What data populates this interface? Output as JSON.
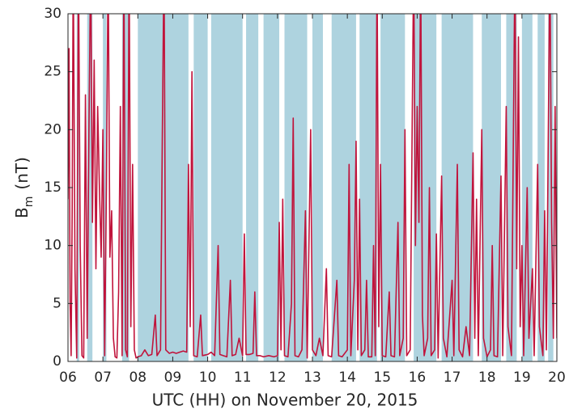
{
  "chart_data": {
    "type": "line",
    "x_label": "UTC (HH) on November 20, 2015",
    "y_label": "B",
    "y_label_sub": "m",
    "y_label_unit": "(nT)",
    "color": "#c0143c",
    "shade_color": "#aed3df",
    "xlim": [
      6,
      20
    ],
    "xticks": [
      {
        "value": 6,
        "label": "06"
      },
      {
        "value": 7,
        "label": "07"
      },
      {
        "value": 8,
        "label": "08"
      },
      {
        "value": 9,
        "label": "09"
      },
      10,
      11,
      12,
      13,
      14,
      15,
      16,
      17,
      18,
      19,
      20
    ],
    "ylim": [
      0,
      30
    ],
    "yticks": [
      0,
      5,
      10,
      15,
      20,
      25,
      30
    ],
    "shaded_intervals": [
      [
        6.25,
        6.32
      ],
      [
        6.55,
        6.7
      ],
      [
        7.0,
        7.1
      ],
      [
        7.55,
        7.75
      ],
      [
        8.0,
        9.45
      ],
      [
        9.6,
        10.0
      ],
      [
        10.1,
        11.0
      ],
      [
        11.1,
        11.45
      ],
      [
        11.6,
        12.05
      ],
      [
        12.2,
        12.85
      ],
      [
        13.0,
        13.3
      ],
      [
        13.55,
        14.25
      ],
      [
        14.35,
        14.85
      ],
      [
        14.95,
        15.65
      ],
      [
        15.9,
        16.55
      ],
      [
        16.7,
        17.6
      ],
      [
        17.85,
        18.4
      ],
      [
        18.55,
        18.85
      ],
      [
        19.0,
        19.3
      ],
      [
        19.45,
        19.65
      ],
      [
        19.75,
        19.9
      ]
    ],
    "x": [
      6.0,
      6.03,
      6.06,
      6.09,
      6.12,
      6.15,
      6.2,
      6.25,
      6.3,
      6.35,
      6.4,
      6.45,
      6.5,
      6.55,
      6.6,
      6.65,
      6.7,
      6.75,
      6.8,
      6.85,
      6.9,
      6.95,
      7.0,
      7.05,
      7.1,
      7.15,
      7.2,
      7.25,
      7.3,
      7.35,
      7.4,
      7.45,
      7.5,
      7.55,
      7.6,
      7.65,
      7.7,
      7.75,
      7.8,
      7.85,
      7.9,
      7.95,
      8.0,
      8.1,
      8.2,
      8.3,
      8.4,
      8.5,
      8.55,
      8.65,
      8.7,
      8.75,
      8.8,
      8.9,
      9.0,
      9.1,
      9.2,
      9.3,
      9.4,
      9.45,
      9.5,
      9.55,
      9.6,
      9.7,
      9.8,
      9.85,
      10.0,
      10.1,
      10.2,
      10.3,
      10.35,
      10.45,
      10.55,
      10.65,
      10.7,
      10.8,
      10.9,
      11.0,
      11.05,
      11.1,
      11.2,
      11.3,
      11.35,
      11.4,
      11.5,
      11.6,
      11.75,
      11.9,
      12.0,
      12.05,
      12.1,
      12.15,
      12.2,
      12.3,
      12.4,
      12.45,
      12.5,
      12.6,
      12.7,
      12.8,
      12.85,
      12.95,
      13.0,
      13.1,
      13.2,
      13.3,
      13.4,
      13.45,
      13.55,
      13.7,
      13.75,
      13.85,
      14.0,
      14.05,
      14.1,
      14.2,
      14.25,
      14.3,
      14.35,
      14.4,
      14.5,
      14.55,
      14.6,
      14.7,
      14.75,
      14.8,
      14.85,
      14.9,
      14.95,
      15.0,
      15.1,
      15.2,
      15.25,
      15.35,
      15.45,
      15.5,
      15.6,
      15.65,
      15.7,
      15.8,
      15.9,
      15.95,
      16.0,
      16.05,
      16.1,
      16.15,
      16.2,
      16.3,
      16.35,
      16.4,
      16.5,
      16.55,
      16.6,
      16.7,
      16.75,
      16.85,
      17.0,
      17.05,
      17.15,
      17.2,
      17.3,
      17.4,
      17.5,
      17.6,
      17.65,
      17.7,
      17.75,
      17.85,
      17.9,
      18.0,
      18.1,
      18.15,
      18.2,
      18.3,
      18.4,
      18.45,
      18.55,
      18.6,
      18.7,
      18.8,
      18.85,
      18.9,
      18.95,
      19.0,
      19.05,
      19.15,
      19.2,
      19.3,
      19.35,
      19.45,
      19.5,
      19.6,
      19.65,
      19.7,
      19.8,
      19.85,
      19.9,
      19.95,
      20.0
    ],
    "values": [
      14,
      27,
      5,
      0.5,
      13,
      35,
      8,
      0.3,
      35,
      10,
      0.5,
      0.3,
      23,
      2,
      20,
      35,
      12,
      26,
      8,
      22,
      15,
      9,
      20,
      0.5,
      15,
      35,
      9,
      13,
      2,
      0.4,
      0.3,
      6,
      22,
      0.5,
      35,
      1,
      0.4,
      35,
      3,
      17,
      1,
      0.3,
      0.4,
      0.5,
      1,
      0.5,
      0.6,
      4,
      0.5,
      1,
      19,
      35,
      1,
      0.7,
      0.8,
      0.7,
      0.8,
      0.9,
      0.8,
      17,
      3,
      25,
      0.5,
      0.4,
      4,
      0.5,
      0.6,
      0.8,
      0.5,
      10,
      0.6,
      0.5,
      0.4,
      7,
      0.5,
      0.6,
      2,
      0.5,
      11,
      0.6,
      0.6,
      0.7,
      6,
      0.5,
      0.5,
      0.4,
      0.5,
      0.4,
      0.5,
      12,
      1,
      14,
      0.5,
      0.4,
      5,
      21,
      0.5,
      0.4,
      1,
      13,
      0.3,
      20,
      1,
      0.5,
      2,
      0.5,
      8,
      0.5,
      0.4,
      7,
      0.5,
      0.4,
      1,
      17,
      0.5,
      7,
      19,
      1,
      14,
      0.5,
      1,
      7,
      0.4,
      0.4,
      10,
      0.5,
      35,
      3,
      17,
      0.5,
      0.4,
      6,
      0.5,
      0.4,
      12,
      0.5,
      2,
      20,
      0.5,
      1,
      35,
      10,
      22,
      12,
      35,
      4,
      0.5,
      2,
      15,
      0.5,
      1,
      11,
      0.3,
      16,
      2,
      0.4,
      7,
      0.5,
      17,
      1,
      0.4,
      3,
      0.5,
      18,
      2,
      14,
      0.5,
      20,
      2,
      0.4,
      1,
      10,
      0.5,
      0.4,
      16,
      0.5,
      22,
      3,
      0.5,
      35,
      8,
      28,
      3,
      10,
      0.5,
      15,
      2,
      8,
      0.5,
      17,
      3,
      0.5,
      13,
      1,
      35,
      12,
      2,
      22,
      2
    ]
  }
}
